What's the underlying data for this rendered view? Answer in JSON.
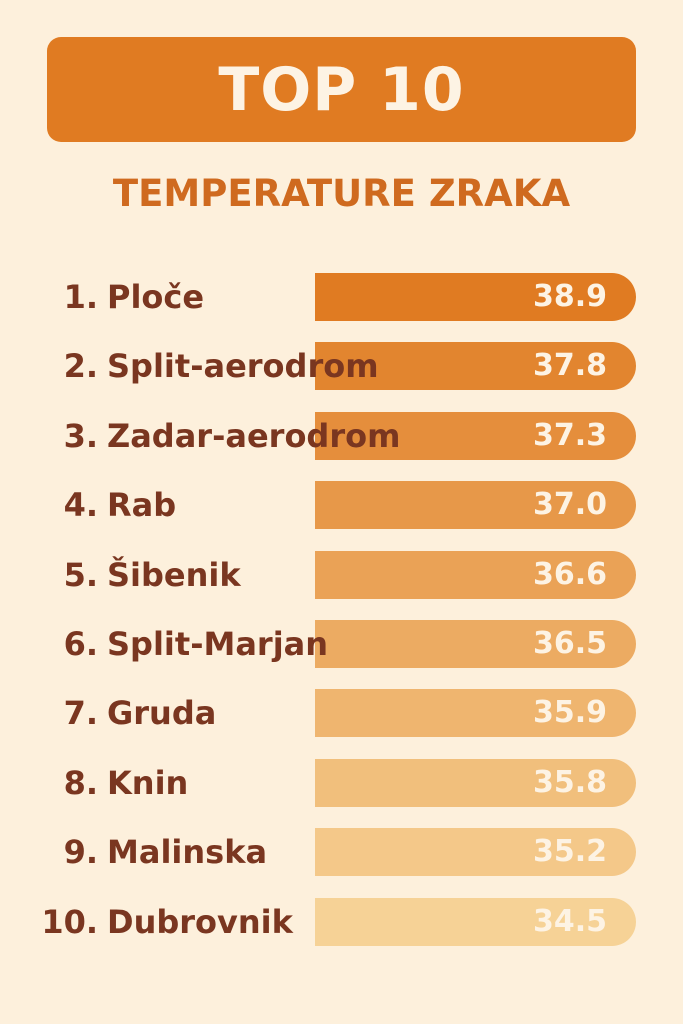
{
  "header": {
    "title": "TOP 10"
  },
  "subtitle": "TEMPERATURE ZRAKA",
  "items": [
    {
      "rank": "1.",
      "name": "Ploče",
      "value": "38.9"
    },
    {
      "rank": "2.",
      "name": "Split-aerodrom",
      "value": "37.8"
    },
    {
      "rank": "3.",
      "name": "Zadar-aerodrom",
      "value": "37.3"
    },
    {
      "rank": "4.",
      "name": "Rab",
      "value": "37.0"
    },
    {
      "rank": "5.",
      "name": "Šibenik",
      "value": "36.6"
    },
    {
      "rank": "6.",
      "name": "Split-Marjan",
      "value": "36.5"
    },
    {
      "rank": "7.",
      "name": "Gruda",
      "value": "35.9"
    },
    {
      "rank": "8.",
      "name": "Knin",
      "value": "35.8"
    },
    {
      "rank": "9.",
      "name": "Malinska",
      "value": "35.2"
    },
    {
      "rank": "10.",
      "name": "Dubrovnik",
      "value": "34.5"
    }
  ]
}
